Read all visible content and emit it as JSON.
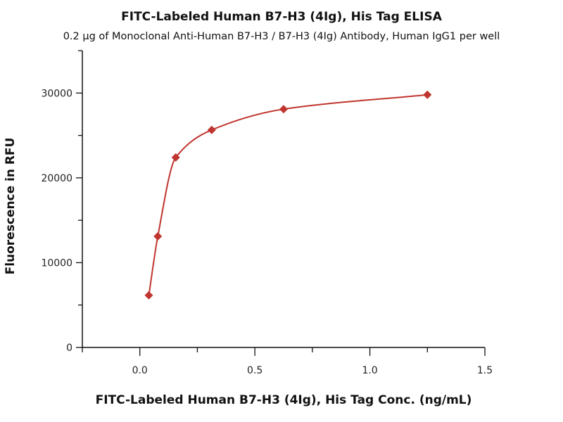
{
  "chart_data": {
    "type": "scatter",
    "title": "FITC-Labeled Human B7-H3 (4Ig), His Tag ELISA",
    "subtitle": "0.2 µg of Monoclonal Anti-Human B7-H3 / B7-H3 (4Ig) Antibody, Human IgG1 per well",
    "xlabel": "FITC-Labeled Human B7-H3 (4Ig), His Tag Conc. (ng/mL)",
    "ylabel": "Fluorescence in RFU",
    "xlim": [
      -0.25,
      1.5
    ],
    "ylim": [
      0,
      35000
    ],
    "x_ticks": [
      "0.0",
      "0.5",
      "1.0",
      "1.5"
    ],
    "x_tick_values": [
      0,
      0.5,
      1.0,
      1.5
    ],
    "y_ticks": [
      "0",
      "10000",
      "20000",
      "30000"
    ],
    "y_tick_values": [
      0,
      10000,
      20000,
      30000
    ],
    "grid": false,
    "series": [
      {
        "x": [
          0.039,
          0.078,
          0.156,
          0.3125,
          0.625,
          1.25
        ],
        "y": [
          6150,
          13100,
          22400,
          25650,
          28100,
          29800
        ],
        "marker": "diamond",
        "fit_line": true,
        "color": "#c0352f"
      }
    ]
  }
}
